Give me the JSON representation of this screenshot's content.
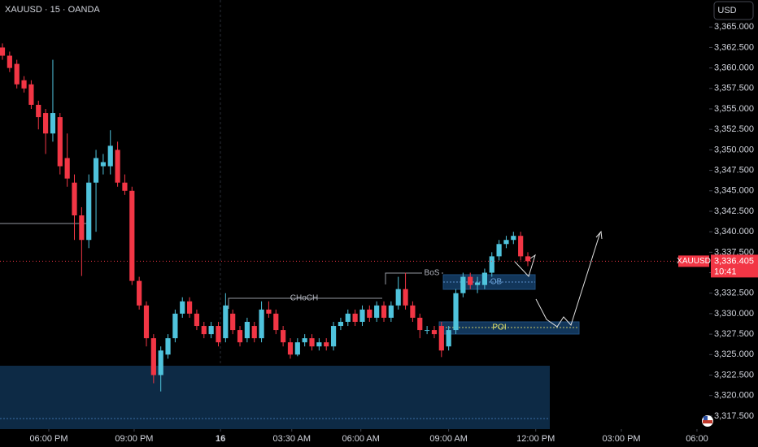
{
  "chart_data": {
    "type": "candlestick",
    "title": "XAUUSD · 15 · OANDA",
    "currency": "USD",
    "symbol_label": "XAUUSD",
    "last_price": {
      "value": 3336.405,
      "label": "3,336.405"
    },
    "countdown": "10:41",
    "annotations": [
      "CHoCH",
      "BoS",
      "OB",
      "POI"
    ],
    "up_color": "#4fc3dc",
    "down_color": "#f23645",
    "ylim": [
      3315.9,
      3368.3
    ],
    "xlim": [
      -0.34,
      98.2
    ],
    "yticks": [
      {
        "value": 3317.5,
        "label": "3,317.500"
      },
      {
        "value": 3320,
        "label": "3,320.000"
      },
      {
        "value": 3322.5,
        "label": "3,322.500"
      },
      {
        "value": 3325,
        "label": "3,325.000"
      },
      {
        "value": 3327.5,
        "label": "3,327.500"
      },
      {
        "value": 3330,
        "label": "3,330.000"
      },
      {
        "value": 3332.5,
        "label": "3,332.500"
      },
      {
        "value": 3335,
        "label": "3,335.000"
      },
      {
        "value": 3337.5,
        "label": "3,337.500"
      },
      {
        "value": 3340,
        "label": "3,340.000"
      },
      {
        "value": 3342.5,
        "label": "3,342.500"
      },
      {
        "value": 3345,
        "label": "3,345.000"
      },
      {
        "value": 3347.5,
        "label": "3,347.500"
      },
      {
        "value": 3350,
        "label": "3,350.000"
      },
      {
        "value": 3352.5,
        "label": "3,352.500"
      },
      {
        "value": 3355,
        "label": "3,355.000"
      },
      {
        "value": 3357.5,
        "label": "3,357.500"
      },
      {
        "value": 3360,
        "label": "3,360.000"
      },
      {
        "value": 3362.5,
        "label": "3,362.500"
      },
      {
        "value": 3365,
        "label": "3,365.000"
      }
    ],
    "xticks": [
      {
        "value": 6.44,
        "label": "06:00 PM"
      },
      {
        "value": 18.3,
        "label": "09:00 PM"
      },
      {
        "value": 30.3,
        "label": "16"
      },
      {
        "value": 40.2,
        "label": "03:30 AM"
      },
      {
        "value": 49.8,
        "label": "06:00 AM"
      },
      {
        "value": 62.0,
        "label": "09:00 AM"
      },
      {
        "value": 74.1,
        "label": "12:00 PM"
      },
      {
        "value": 86.0,
        "label": "03:00 PM"
      },
      {
        "value": 96.5,
        "label": "06:00"
      }
    ],
    "candles": [
      {
        "open": 3362.5,
        "high": 3363,
        "low": 3361,
        "close": 3361.5
      },
      {
        "open": 3361.5,
        "high": 3362,
        "low": 3359.5,
        "close": 3360
      },
      {
        "open": 3360.5,
        "high": 3361,
        "low": 3357.5,
        "close": 3358
      },
      {
        "open": 3358.5,
        "high": 3359,
        "low": 3357,
        "close": 3357.5
      },
      {
        "open": 3358,
        "high": 3358.5,
        "low": 3355,
        "close": 3355.5
      },
      {
        "open": 3355.5,
        "high": 3356,
        "low": 3352.5,
        "close": 3354
      },
      {
        "open": 3354.5,
        "high": 3355,
        "low": 3349.5,
        "close": 3352
      },
      {
        "open": 3352,
        "high": 3361,
        "low": 3351,
        "close": 3354.5
      },
      {
        "open": 3354,
        "high": 3354.5,
        "low": 3347,
        "close": 3348
      },
      {
        "open": 3349,
        "high": 3352,
        "low": 3345.5,
        "close": 3346.5
      },
      {
        "open": 3346,
        "high": 3347,
        "low": 3339,
        "close": 3342
      },
      {
        "open": 3342,
        "high": 3343,
        "low": 3334.6,
        "close": 3339
      },
      {
        "open": 3339,
        "high": 3347,
        "low": 3338,
        "close": 3346
      },
      {
        "open": 3346,
        "high": 3350,
        "low": 3340,
        "close": 3349
      },
      {
        "open": 3348,
        "high": 3349.5,
        "low": 3347,
        "close": 3348.5
      },
      {
        "open": 3348,
        "high": 3352.4,
        "low": 3347,
        "close": 3350.5
      },
      {
        "open": 3350,
        "high": 3351,
        "low": 3345.5,
        "close": 3346
      },
      {
        "open": 3346,
        "high": 3347,
        "low": 3344.5,
        "close": 3345
      },
      {
        "open": 3345,
        "high": 3345.5,
        "low": 3333.5,
        "close": 3334
      },
      {
        "open": 3334,
        "high": 3334.5,
        "low": 3330.5,
        "close": 3331
      },
      {
        "open": 3331,
        "high": 3331.5,
        "low": 3326,
        "close": 3327
      },
      {
        "open": 3327,
        "high": 3327.5,
        "low": 3321.5,
        "close": 3322.5
      },
      {
        "open": 3322.5,
        "high": 3326,
        "low": 3320.5,
        "close": 3325.5
      },
      {
        "open": 3325,
        "high": 3327.5,
        "low": 3324.5,
        "close": 3327
      },
      {
        "open": 3327,
        "high": 3330.5,
        "low": 3326.5,
        "close": 3330
      },
      {
        "open": 3330,
        "high": 3332,
        "low": 3329.5,
        "close": 3331.5
      },
      {
        "open": 3331.5,
        "high": 3332,
        "low": 3329.5,
        "close": 3330
      },
      {
        "open": 3330,
        "high": 3330.5,
        "low": 3328,
        "close": 3328.5
      },
      {
        "open": 3328.5,
        "high": 3329,
        "low": 3327,
        "close": 3327.5
      },
      {
        "open": 3327.5,
        "high": 3329,
        "low": 3327,
        "close": 3328.5
      },
      {
        "open": 3328.5,
        "high": 3329,
        "low": 3326,
        "close": 3326.5
      },
      {
        "open": 3327,
        "high": 3332.5,
        "low": 3326.5,
        "close": 3331
      },
      {
        "open": 3330,
        "high": 3330.5,
        "low": 3327.5,
        "close": 3328
      },
      {
        "open": 3328,
        "high": 3328.5,
        "low": 3326,
        "close": 3326.5
      },
      {
        "open": 3327,
        "high": 3329.5,
        "low": 3326.5,
        "close": 3329
      },
      {
        "open": 3328.5,
        "high": 3329,
        "low": 3326.5,
        "close": 3327
      },
      {
        "open": 3327,
        "high": 3331.5,
        "low": 3326.5,
        "close": 3330.5
      },
      {
        "open": 3330.5,
        "high": 3331.5,
        "low": 3329.5,
        "close": 3330
      },
      {
        "open": 3330,
        "high": 3330.5,
        "low": 3327.5,
        "close": 3328
      },
      {
        "open": 3328,
        "high": 3328.5,
        "low": 3326,
        "close": 3326.5
      },
      {
        "open": 3326.5,
        "high": 3327,
        "low": 3324.5,
        "close": 3325
      },
      {
        "open": 3325,
        "high": 3327,
        "low": 3324.8,
        "close": 3326.5
      },
      {
        "open": 3326.5,
        "high": 3327.5,
        "low": 3326,
        "close": 3327
      },
      {
        "open": 3327,
        "high": 3327.5,
        "low": 3325.5,
        "close": 3326
      },
      {
        "open": 3326,
        "high": 3327,
        "low": 3325.5,
        "close": 3326.5
      },
      {
        "open": 3326.5,
        "high": 3327,
        "low": 3325.5,
        "close": 3326
      },
      {
        "open": 3326,
        "high": 3329,
        "low": 3325.5,
        "close": 3328.5
      },
      {
        "open": 3328.5,
        "high": 3329.5,
        "low": 3328,
        "close": 3329
      },
      {
        "open": 3329,
        "high": 3330.5,
        "low": 3328.5,
        "close": 3330
      },
      {
        "open": 3330,
        "high": 3330.5,
        "low": 3328.5,
        "close": 3329
      },
      {
        "open": 3329,
        "high": 3331,
        "low": 3328.5,
        "close": 3330.5
      },
      {
        "open": 3330.5,
        "high": 3331,
        "low": 3329,
        "close": 3329.5
      },
      {
        "open": 3329.5,
        "high": 3331.5,
        "low": 3329,
        "close": 3331
      },
      {
        "open": 3331,
        "high": 3331.5,
        "low": 3329,
        "close": 3329.5
      },
      {
        "open": 3329.5,
        "high": 3331.5,
        "low": 3329,
        "close": 3331
      },
      {
        "open": 3331,
        "high": 3334.5,
        "low": 3330.5,
        "close": 3333
      },
      {
        "open": 3333,
        "high": 3335,
        "low": 3330.5,
        "close": 3331
      },
      {
        "open": 3331,
        "high": 3331.5,
        "low": 3329,
        "close": 3329.5
      },
      {
        "open": 3329.5,
        "high": 3330,
        "low": 3327,
        "close": 3328
      },
      {
        "open": 3328,
        "high": 3328.5,
        "low": 3327.5,
        "close": 3328
      },
      {
        "open": 3328,
        "high": 3328.5,
        "low": 3327,
        "close": 3327.5
      },
      {
        "open": 3328.5,
        "high": 3329,
        "low": 3324.7,
        "close": 3325.5
      },
      {
        "open": 3326,
        "high": 3328.5,
        "low": 3325.5,
        "close": 3328
      },
      {
        "open": 3328,
        "high": 3333,
        "low": 3327.5,
        "close": 3332.5
      },
      {
        "open": 3332.5,
        "high": 3335,
        "low": 3332,
        "close": 3334.5
      },
      {
        "open": 3334.5,
        "high": 3335,
        "low": 3333,
        "close": 3333.5
      },
      {
        "open": 3333.5,
        "high": 3334.5,
        "low": 3332.5,
        "close": 3333.8
      },
      {
        "open": 3333.5,
        "high": 3335.5,
        "low": 3333,
        "close": 3335
      },
      {
        "open": 3335,
        "high": 3337.5,
        "low": 3334.5,
        "close": 3337
      },
      {
        "open": 3337,
        "high": 3339,
        "low": 3336.5,
        "close": 3338.5
      },
      {
        "open": 3338.5,
        "high": 3339.5,
        "low": 3338,
        "close": 3339
      },
      {
        "open": 3339,
        "high": 3340,
        "low": 3338.5,
        "close": 3339.5
      },
      {
        "open": 3339.5,
        "high": 3340,
        "low": 3336.5,
        "close": 3337
      },
      {
        "open": 3337,
        "high": 3337.5,
        "low": 3335.8,
        "close": 3336.405
      }
    ]
  }
}
